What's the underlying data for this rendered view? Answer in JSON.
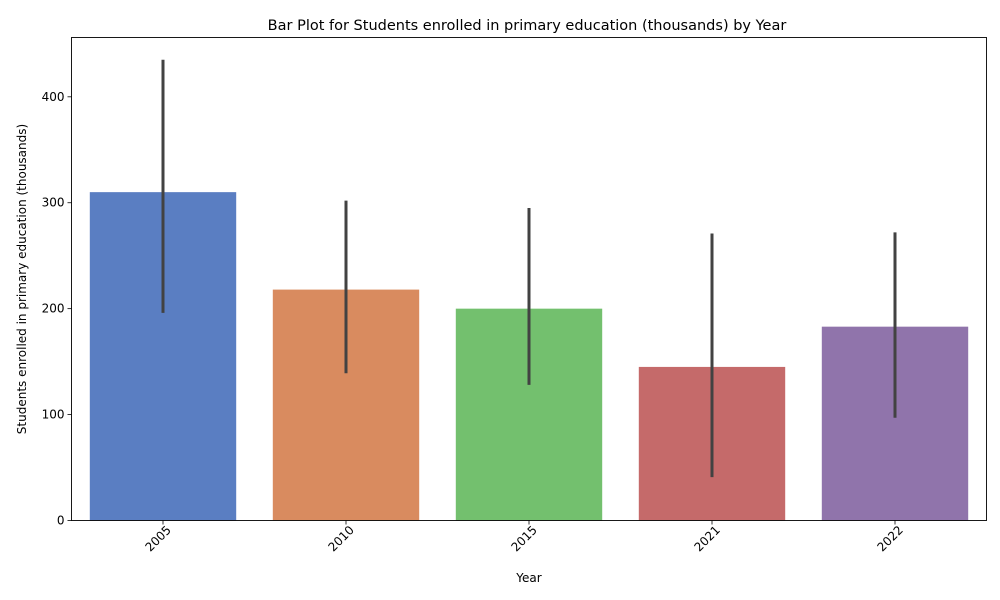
{
  "chart_data": {
    "type": "bar",
    "title": "Bar Plot for Students enrolled in primary education (thousands) by Year",
    "xlabel": "Year",
    "ylabel": "Students enrolled in primary education (thousands)",
    "categories": [
      "2005",
      "2010",
      "2015",
      "2021",
      "2022"
    ],
    "values": [
      310,
      218,
      200,
      145,
      183
    ],
    "error_low": [
      196,
      139,
      128,
      41,
      97
    ],
    "error_high": [
      435,
      302,
      295,
      271,
      272
    ],
    "colors": [
      "#5a7ec2",
      "#d98b5f",
      "#73c06e",
      "#c56a6a",
      "#9074ab"
    ],
    "ylim": [
      0,
      456
    ],
    "yticks": [
      0,
      100,
      200,
      300,
      400
    ],
    "grid": false
  }
}
